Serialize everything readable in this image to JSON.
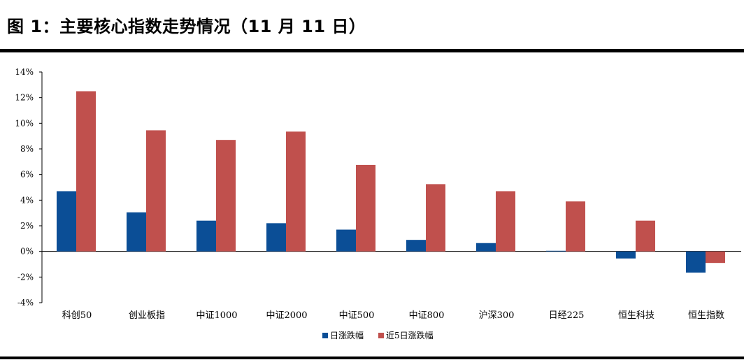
{
  "header": {
    "title": "图 1：主要核心指数走势情况（11 月 11 日）"
  },
  "colors": {
    "series1": "#0b4e96",
    "series2": "#c0504d"
  },
  "chart_data": {
    "type": "bar",
    "categories": [
      "科创50",
      "创业板指",
      "中证1000",
      "中证2000",
      "中证500",
      "中证800",
      "沪深300",
      "日经225",
      "恒生科技",
      "恒生指数"
    ],
    "series": [
      {
        "name": "日涨跌幅",
        "values": [
          4.7,
          3.05,
          2.4,
          2.2,
          1.7,
          0.9,
          0.65,
          0.05,
          -0.55,
          -1.65
        ]
      },
      {
        "name": "近5日涨跌幅",
        "values": [
          12.5,
          9.45,
          8.7,
          9.35,
          6.75,
          5.25,
          4.7,
          3.9,
          2.4,
          -0.9
        ]
      }
    ],
    "ylim": [
      -4,
      14
    ],
    "yticks": [
      "-4%",
      "-2%",
      "0%",
      "2%",
      "4%",
      "6%",
      "8%",
      "10%",
      "12%",
      "14%"
    ],
    "grid": false,
    "legend": "bottom-center"
  }
}
